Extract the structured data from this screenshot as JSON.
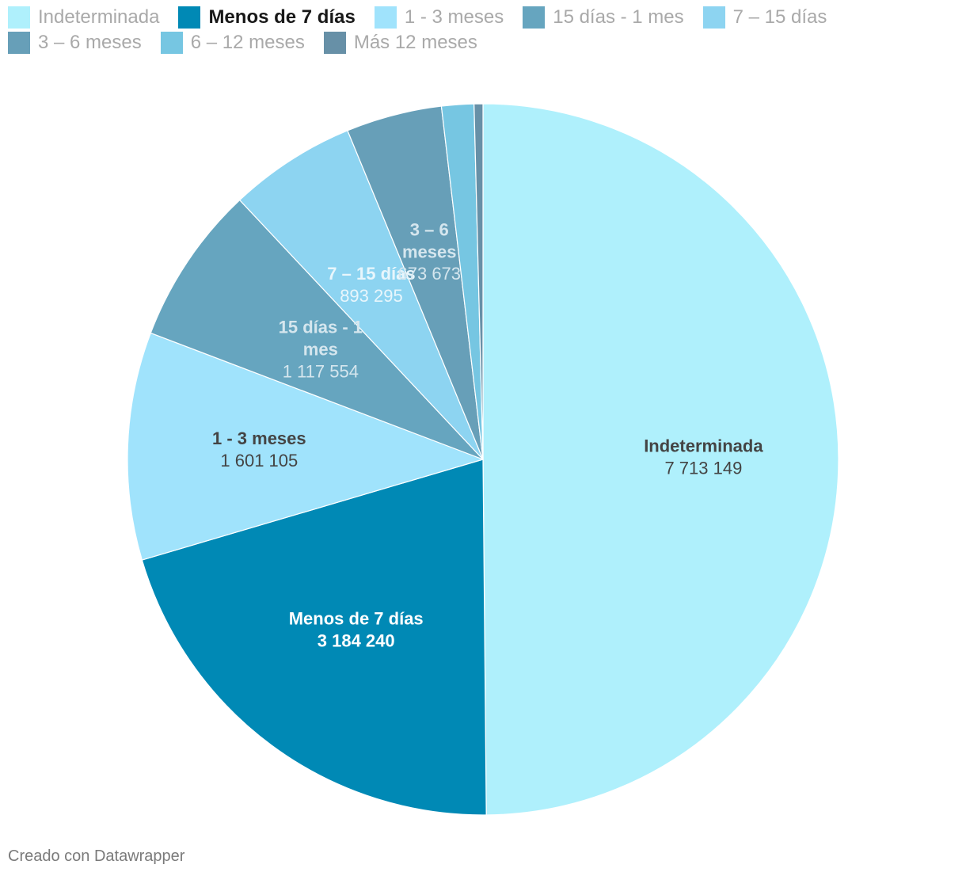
{
  "legend": {
    "items": [
      {
        "label": "Indeterminada",
        "color": "#aff0fc",
        "active": false
      },
      {
        "label": "Menos de 7 días",
        "color": "#0089b5",
        "active": true
      },
      {
        "label": "1 - 3 meses",
        "color": "#a0e3fc",
        "active": false
      },
      {
        "label": "15 días - 1 mes",
        "color": "#66a5bf",
        "active": false
      },
      {
        "label": "7 – 15 días",
        "color": "#8dd4f1",
        "active": false
      },
      {
        "label": "3 – 6 meses",
        "color": "#679fb8",
        "active": false
      },
      {
        "label": "6 – 12 meses",
        "color": "#76c6e2",
        "active": false
      },
      {
        "label": "Más 12 meses",
        "color": "#6790a7",
        "active": false
      }
    ]
  },
  "chart_data": {
    "type": "pie",
    "slices": [
      {
        "label": "Indeterminada",
        "value": 7713149,
        "display": "7 713 149",
        "color": "#aff0fc",
        "label_color": "#444444",
        "value_color": "#444444",
        "label_weight": "bold",
        "value_weight": "normal"
      },
      {
        "label": "Menos de 7 días",
        "value": 3184240,
        "display": "3 184 240",
        "color": "#0089b5",
        "label_color": "#ffffff",
        "value_color": "#ffffff",
        "label_weight": "bold",
        "value_weight": "bold"
      },
      {
        "label": "1 - 3 meses",
        "value": 1601105,
        "display": "1 601 105",
        "color": "#a0e3fc",
        "label_color": "#444444",
        "value_color": "#444444",
        "label_weight": "bold",
        "value_weight": "normal"
      },
      {
        "label": "15 días - 1 mes",
        "value": 1117554,
        "display": "1 117 554",
        "color": "#66a5bf",
        "label_color": "#d5e6ee",
        "value_color": "#d5e6ee",
        "label_weight": "bold",
        "value_weight": "normal"
      },
      {
        "label": "7 – 15 días",
        "value": 893295,
        "display": "893 295",
        "color": "#8dd4f1",
        "label_color": "#e8f6fc",
        "value_color": "#e8f6fc",
        "label_weight": "bold",
        "value_weight": "normal"
      },
      {
        "label": "3 – 6 meses",
        "value": 673673,
        "display": "673 673",
        "color": "#679fb8",
        "label_color": "#d5e6ee",
        "value_color": "#d5e6ee",
        "label_weight": "bold",
        "value_weight": "normal"
      },
      {
        "label": "6 – 12 meses",
        "value": 227000,
        "display": "",
        "color": "#76c6e2"
      },
      {
        "label": "Más 12 meses",
        "value": 62000,
        "display": "",
        "color": "#6790a7"
      }
    ]
  },
  "footer": {
    "credit": "Creado con Datawrapper"
  }
}
